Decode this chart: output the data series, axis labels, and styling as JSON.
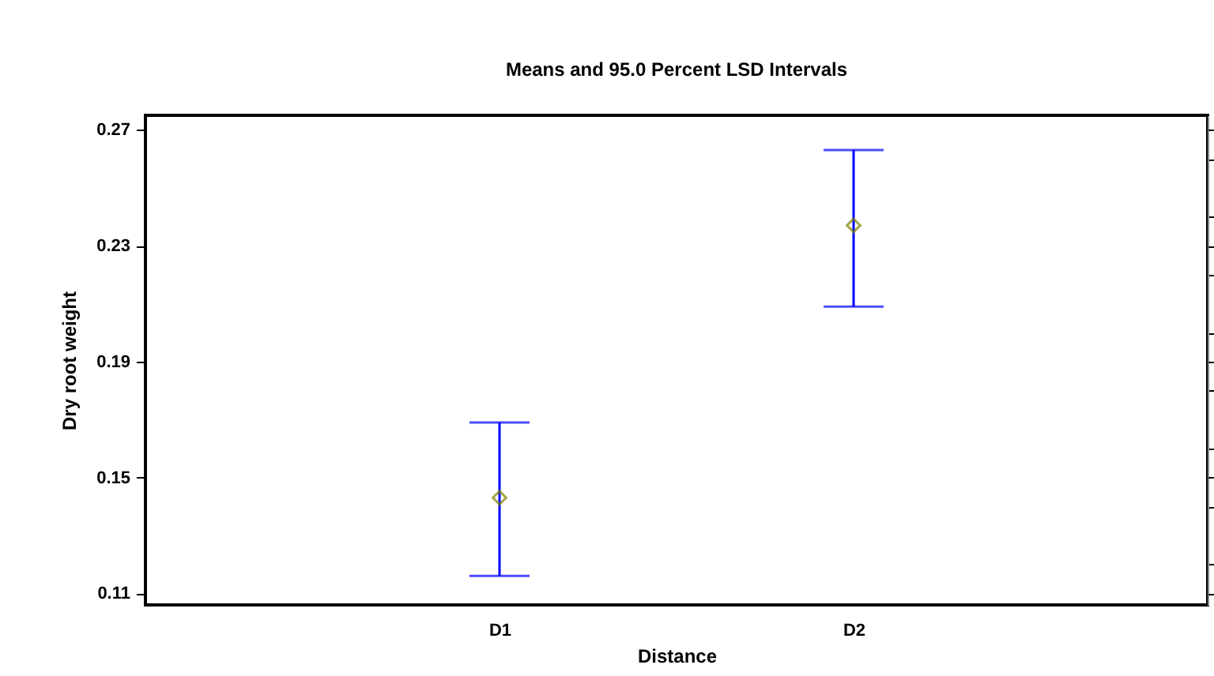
{
  "chart_data": {
    "type": "scatter",
    "title": "Means and 95.0 Percent LSD Intervals",
    "xlabel": "Distance",
    "ylabel": "Dry root weight",
    "categories": [
      "D1",
      "D2"
    ],
    "series": [
      {
        "color": "#808000",
        "values": [
          0.143,
          0.237
        ],
        "errors": [
          [
            0.116,
            0.169
          ],
          [
            0.209,
            0.263
          ]
        ]
      }
    ],
    "ylim": [
      0.106,
      0.275
    ],
    "yticks": [
      0.11,
      0.15,
      0.19,
      0.23,
      0.27
    ],
    "marker": "diamond",
    "grid": false
  }
}
